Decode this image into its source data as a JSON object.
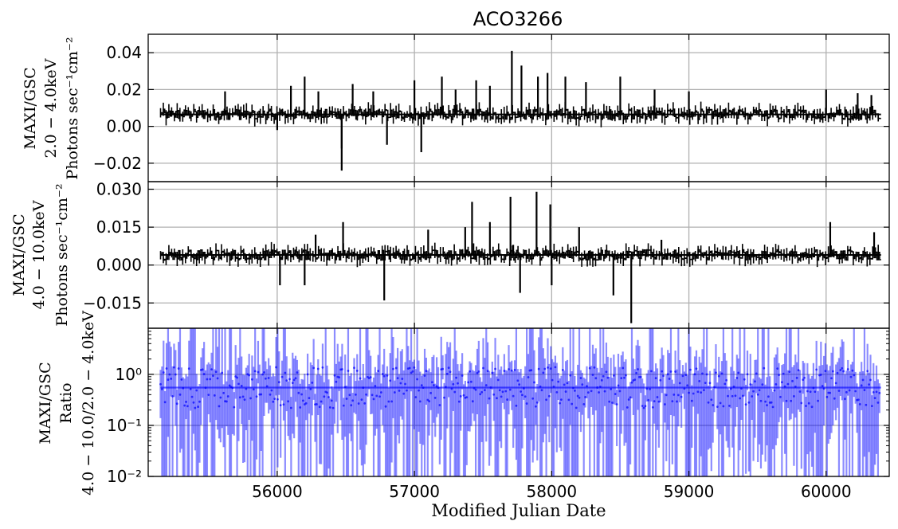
{
  "chart_data": [
    {
      "type": "line",
      "title": "ACO3266",
      "ylabel": [
        "MAXI/GSC",
        "2.0 − 4.0keV",
        "Photons sec⁻¹cm⁻²"
      ],
      "xlabel": "",
      "xlim": [
        55060,
        60460
      ],
      "ylim": [
        -0.03,
        0.05
      ],
      "yscale": "linear",
      "xticks": [
        56000,
        57000,
        58000,
        59000,
        60000
      ],
      "yticks": [
        -0.02,
        0.0,
        0.02,
        0.04
      ],
      "ytick_labels": [
        "−0.02",
        "0.00",
        "0.02",
        "0.04"
      ],
      "grid": true,
      "series_color": "#000000",
      "mean_line": 0.0065,
      "spikes": [
        [
          55620,
          0.019
        ],
        [
          56000,
          -0.002
        ],
        [
          56100,
          0.022
        ],
        [
          56200,
          0.027
        ],
        [
          56300,
          0.019
        ],
        [
          56470,
          -0.024
        ],
        [
          56470,
          -0.012
        ],
        [
          56550,
          0.023
        ],
        [
          56700,
          0.019
        ],
        [
          56800,
          -0.01
        ],
        [
          57000,
          0.025
        ],
        [
          57050,
          -0.014
        ],
        [
          57200,
          0.027
        ],
        [
          57300,
          0.02
        ],
        [
          57450,
          0.025
        ],
        [
          57550,
          0.022
        ],
        [
          57710,
          0.041
        ],
        [
          57780,
          0.033
        ],
        [
          57900,
          0.027
        ],
        [
          57970,
          0.029
        ],
        [
          58100,
          0.027
        ],
        [
          58250,
          0.024
        ],
        [
          58500,
          0.027
        ],
        [
          58750,
          0.02
        ],
        [
          59000,
          0.019
        ],
        [
          60000,
          0.02
        ],
        [
          60230,
          0.018
        ],
        [
          60330,
          0.017
        ]
      ]
    },
    {
      "type": "line",
      "ylabel": [
        "MAXI/GSC",
        "4.0 − 10.0keV",
        "Photons sec⁻¹cm⁻²"
      ],
      "xlabel": "",
      "xlim": [
        55060,
        60460
      ],
      "ylim": [
        -0.025,
        0.033
      ],
      "yscale": "linear",
      "xticks": [
        56000,
        57000,
        58000,
        59000,
        60000
      ],
      "yticks": [
        -0.015,
        0.0,
        0.015,
        0.03
      ],
      "ytick_labels": [
        "−0.015",
        "0.000",
        "0.015",
        "0.030"
      ],
      "grid": true,
      "series_color": "#000000",
      "mean_line": 0.004,
      "spikes": [
        [
          56020,
          -0.008
        ],
        [
          56200,
          -0.008
        ],
        [
          56280,
          0.012
        ],
        [
          56480,
          0.017
        ],
        [
          56780,
          -0.014
        ],
        [
          57100,
          0.014
        ],
        [
          57370,
          0.015
        ],
        [
          57420,
          0.025
        ],
        [
          57550,
          0.017
        ],
        [
          57700,
          0.027
        ],
        [
          57720,
          0.008
        ],
        [
          57770,
          -0.011
        ],
        [
          57890,
          0.029
        ],
        [
          57990,
          0.024
        ],
        [
          58000,
          -0.008
        ],
        [
          58200,
          0.015
        ],
        [
          58450,
          -0.012
        ],
        [
          58580,
          -0.023
        ],
        [
          58800,
          0.01
        ],
        [
          60030,
          0.017
        ],
        [
          60350,
          0.013
        ]
      ]
    },
    {
      "type": "line",
      "ylabel": [
        "MAXI/GSC",
        "Ratio",
        "4.0 − 10.0/2.0 − 4.0keV"
      ],
      "xlabel": "Modified Julian Date",
      "xlim": [
        55060,
        60460
      ],
      "ylim": [
        0.01,
        8
      ],
      "yscale": "log",
      "xticks": [
        56000,
        57000,
        58000,
        59000,
        60000
      ],
      "xtick_labels": [
        "56000",
        "57000",
        "58000",
        "59000",
        "60000"
      ],
      "ytick_labels": [
        "10⁻²",
        "10⁻¹",
        "10⁰"
      ],
      "grid": true,
      "series_color": "#0000ff",
      "mean_line": 0.55
    }
  ]
}
